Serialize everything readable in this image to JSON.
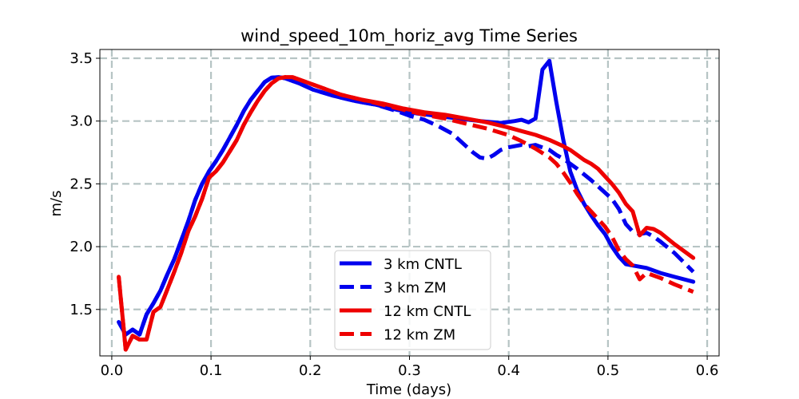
{
  "chart_data": {
    "type": "line",
    "title": "wind_speed_10m_horiz_avg Time Series",
    "xlabel": "Time (days)",
    "ylabel": "m/s",
    "xlim": [
      -0.012,
      0.612
    ],
    "ylim": [
      1.13,
      3.57
    ],
    "xticks": [
      0.0,
      0.1,
      0.2,
      0.3,
      0.4,
      0.5,
      0.6
    ],
    "xtick_labels": [
      "0.0",
      "0.1",
      "0.2",
      "0.3",
      "0.4",
      "0.5",
      "0.6"
    ],
    "yticks": [
      1.5,
      2.0,
      2.5,
      3.0,
      3.5
    ],
    "ytick_labels": [
      "1.5",
      "2.0",
      "2.5",
      "3.0",
      "3.5"
    ],
    "grid": true,
    "legend_position": "lower-center",
    "series": [
      {
        "name": "3 km CNTL",
        "color": "#0000ee",
        "style": "solid",
        "points": [
          [
            0.007,
            1.4
          ],
          [
            0.014,
            1.3
          ],
          [
            0.021,
            1.34
          ],
          [
            0.028,
            1.3
          ],
          [
            0.035,
            1.46
          ],
          [
            0.042,
            1.55
          ],
          [
            0.049,
            1.65
          ],
          [
            0.056,
            1.78
          ],
          [
            0.063,
            1.9
          ],
          [
            0.07,
            2.05
          ],
          [
            0.077,
            2.2
          ],
          [
            0.084,
            2.37
          ],
          [
            0.091,
            2.5
          ],
          [
            0.098,
            2.6
          ],
          [
            0.105,
            2.68
          ],
          [
            0.112,
            2.77
          ],
          [
            0.119,
            2.87
          ],
          [
            0.126,
            2.97
          ],
          [
            0.133,
            3.08
          ],
          [
            0.14,
            3.17
          ],
          [
            0.147,
            3.24
          ],
          [
            0.154,
            3.31
          ],
          [
            0.161,
            3.345
          ],
          [
            0.168,
            3.35
          ],
          [
            0.175,
            3.34
          ],
          [
            0.189,
            3.3
          ],
          [
            0.203,
            3.25
          ],
          [
            0.224,
            3.2
          ],
          [
            0.245,
            3.16
          ],
          [
            0.266,
            3.13
          ],
          [
            0.287,
            3.09
          ],
          [
            0.308,
            3.06
          ],
          [
            0.329,
            3.04
          ],
          [
            0.35,
            3.02
          ],
          [
            0.371,
            3.0
          ],
          [
            0.392,
            2.985
          ],
          [
            0.406,
            3.0
          ],
          [
            0.413,
            3.01
          ],
          [
            0.42,
            2.99
          ],
          [
            0.427,
            3.02
          ],
          [
            0.434,
            3.41
          ],
          [
            0.441,
            3.48
          ],
          [
            0.448,
            3.15
          ],
          [
            0.455,
            2.85
          ],
          [
            0.462,
            2.6
          ],
          [
            0.469,
            2.45
          ],
          [
            0.476,
            2.34
          ],
          [
            0.483,
            2.25
          ],
          [
            0.49,
            2.17
          ],
          [
            0.497,
            2.1
          ],
          [
            0.504,
            2.0
          ],
          [
            0.511,
            1.92
          ],
          [
            0.518,
            1.86
          ],
          [
            0.525,
            1.85
          ],
          [
            0.539,
            1.83
          ],
          [
            0.553,
            1.79
          ],
          [
            0.567,
            1.76
          ],
          [
            0.586,
            1.72
          ]
        ]
      },
      {
        "name": "3 km ZM",
        "color": "#0000ee",
        "style": "dashed",
        "points": [
          [
            0.007,
            1.4
          ],
          [
            0.014,
            1.3
          ],
          [
            0.021,
            1.34
          ],
          [
            0.028,
            1.3
          ],
          [
            0.035,
            1.46
          ],
          [
            0.042,
            1.55
          ],
          [
            0.049,
            1.65
          ],
          [
            0.056,
            1.78
          ],
          [
            0.063,
            1.9
          ],
          [
            0.07,
            2.05
          ],
          [
            0.077,
            2.2
          ],
          [
            0.084,
            2.37
          ],
          [
            0.091,
            2.5
          ],
          [
            0.098,
            2.6
          ],
          [
            0.105,
            2.68
          ],
          [
            0.112,
            2.77
          ],
          [
            0.119,
            2.87
          ],
          [
            0.126,
            2.97
          ],
          [
            0.133,
            3.08
          ],
          [
            0.14,
            3.17
          ],
          [
            0.147,
            3.24
          ],
          [
            0.154,
            3.31
          ],
          [
            0.161,
            3.345
          ],
          [
            0.168,
            3.35
          ],
          [
            0.175,
            3.34
          ],
          [
            0.189,
            3.3
          ],
          [
            0.203,
            3.25
          ],
          [
            0.224,
            3.2
          ],
          [
            0.245,
            3.16
          ],
          [
            0.266,
            3.13
          ],
          [
            0.287,
            3.08
          ],
          [
            0.301,
            3.04
          ],
          [
            0.315,
            3.01
          ],
          [
            0.329,
            2.96
          ],
          [
            0.343,
            2.9
          ],
          [
            0.357,
            2.8
          ],
          [
            0.364,
            2.75
          ],
          [
            0.371,
            2.71
          ],
          [
            0.378,
            2.7
          ],
          [
            0.385,
            2.73
          ],
          [
            0.392,
            2.77
          ],
          [
            0.399,
            2.79
          ],
          [
            0.406,
            2.8
          ],
          [
            0.413,
            2.81
          ],
          [
            0.42,
            2.8
          ],
          [
            0.427,
            2.81
          ],
          [
            0.434,
            2.79
          ],
          [
            0.441,
            2.77
          ],
          [
            0.448,
            2.73
          ],
          [
            0.455,
            2.7
          ],
          [
            0.469,
            2.62
          ],
          [
            0.483,
            2.53
          ],
          [
            0.497,
            2.43
          ],
          [
            0.504,
            2.38
          ],
          [
            0.511,
            2.3
          ],
          [
            0.518,
            2.18
          ],
          [
            0.525,
            2.12
          ],
          [
            0.532,
            2.1
          ],
          [
            0.539,
            2.11
          ],
          [
            0.546,
            2.08
          ],
          [
            0.553,
            2.04
          ],
          [
            0.567,
            1.95
          ],
          [
            0.586,
            1.8
          ]
        ]
      },
      {
        "name": "12 km CNTL",
        "color": "#ee0000",
        "style": "solid",
        "points": [
          [
            0.007,
            1.76
          ],
          [
            0.014,
            1.18
          ],
          [
            0.021,
            1.29
          ],
          [
            0.028,
            1.26
          ],
          [
            0.035,
            1.26
          ],
          [
            0.042,
            1.48
          ],
          [
            0.049,
            1.52
          ],
          [
            0.056,
            1.66
          ],
          [
            0.063,
            1.8
          ],
          [
            0.07,
            1.95
          ],
          [
            0.077,
            2.12
          ],
          [
            0.084,
            2.24
          ],
          [
            0.091,
            2.38
          ],
          [
            0.098,
            2.55
          ],
          [
            0.105,
            2.6
          ],
          [
            0.112,
            2.67
          ],
          [
            0.119,
            2.76
          ],
          [
            0.126,
            2.85
          ],
          [
            0.133,
            2.97
          ],
          [
            0.14,
            3.07
          ],
          [
            0.147,
            3.16
          ],
          [
            0.154,
            3.24
          ],
          [
            0.161,
            3.3
          ],
          [
            0.168,
            3.34
          ],
          [
            0.175,
            3.35
          ],
          [
            0.182,
            3.35
          ],
          [
            0.196,
            3.31
          ],
          [
            0.21,
            3.27
          ],
          [
            0.231,
            3.21
          ],
          [
            0.252,
            3.17
          ],
          [
            0.273,
            3.14
          ],
          [
            0.294,
            3.1
          ],
          [
            0.315,
            3.07
          ],
          [
            0.336,
            3.05
          ],
          [
            0.357,
            3.02
          ],
          [
            0.378,
            2.99
          ],
          [
            0.399,
            2.95
          ],
          [
            0.413,
            2.92
          ],
          [
            0.427,
            2.89
          ],
          [
            0.441,
            2.85
          ],
          [
            0.455,
            2.8
          ],
          [
            0.462,
            2.77
          ],
          [
            0.469,
            2.73
          ],
          [
            0.476,
            2.69
          ],
          [
            0.483,
            2.66
          ],
          [
            0.49,
            2.62
          ],
          [
            0.497,
            2.56
          ],
          [
            0.504,
            2.5
          ],
          [
            0.511,
            2.43
          ],
          [
            0.518,
            2.34
          ],
          [
            0.525,
            2.28
          ],
          [
            0.532,
            2.09
          ],
          [
            0.539,
            2.15
          ],
          [
            0.546,
            2.14
          ],
          [
            0.553,
            2.11
          ],
          [
            0.567,
            2.02
          ],
          [
            0.586,
            1.91
          ]
        ]
      },
      {
        "name": "12 km ZM",
        "color": "#ee0000",
        "style": "dashed",
        "points": [
          [
            0.007,
            1.76
          ],
          [
            0.014,
            1.18
          ],
          [
            0.021,
            1.29
          ],
          [
            0.028,
            1.26
          ],
          [
            0.035,
            1.26
          ],
          [
            0.042,
            1.48
          ],
          [
            0.049,
            1.52
          ],
          [
            0.056,
            1.66
          ],
          [
            0.063,
            1.8
          ],
          [
            0.07,
            1.95
          ],
          [
            0.077,
            2.12
          ],
          [
            0.084,
            2.24
          ],
          [
            0.091,
            2.38
          ],
          [
            0.098,
            2.55
          ],
          [
            0.105,
            2.6
          ],
          [
            0.112,
            2.67
          ],
          [
            0.119,
            2.76
          ],
          [
            0.126,
            2.85
          ],
          [
            0.133,
            2.97
          ],
          [
            0.14,
            3.07
          ],
          [
            0.147,
            3.16
          ],
          [
            0.154,
            3.24
          ],
          [
            0.161,
            3.3
          ],
          [
            0.168,
            3.34
          ],
          [
            0.175,
            3.35
          ],
          [
            0.182,
            3.35
          ],
          [
            0.196,
            3.31
          ],
          [
            0.21,
            3.27
          ],
          [
            0.231,
            3.21
          ],
          [
            0.252,
            3.17
          ],
          [
            0.273,
            3.13
          ],
          [
            0.294,
            3.09
          ],
          [
            0.315,
            3.05
          ],
          [
            0.336,
            3.02
          ],
          [
            0.357,
            2.98
          ],
          [
            0.378,
            2.94
          ],
          [
            0.399,
            2.89
          ],
          [
            0.413,
            2.84
          ],
          [
            0.427,
            2.78
          ],
          [
            0.441,
            2.71
          ],
          [
            0.448,
            2.66
          ],
          [
            0.455,
            2.59
          ],
          [
            0.462,
            2.51
          ],
          [
            0.469,
            2.42
          ],
          [
            0.476,
            2.34
          ],
          [
            0.483,
            2.28
          ],
          [
            0.49,
            2.22
          ],
          [
            0.497,
            2.16
          ],
          [
            0.504,
            2.08
          ],
          [
            0.511,
            1.97
          ],
          [
            0.518,
            1.9
          ],
          [
            0.525,
            1.85
          ],
          [
            0.532,
            1.74
          ],
          [
            0.539,
            1.79
          ],
          [
            0.553,
            1.75
          ],
          [
            0.567,
            1.7
          ],
          [
            0.586,
            1.64
          ]
        ]
      }
    ]
  }
}
